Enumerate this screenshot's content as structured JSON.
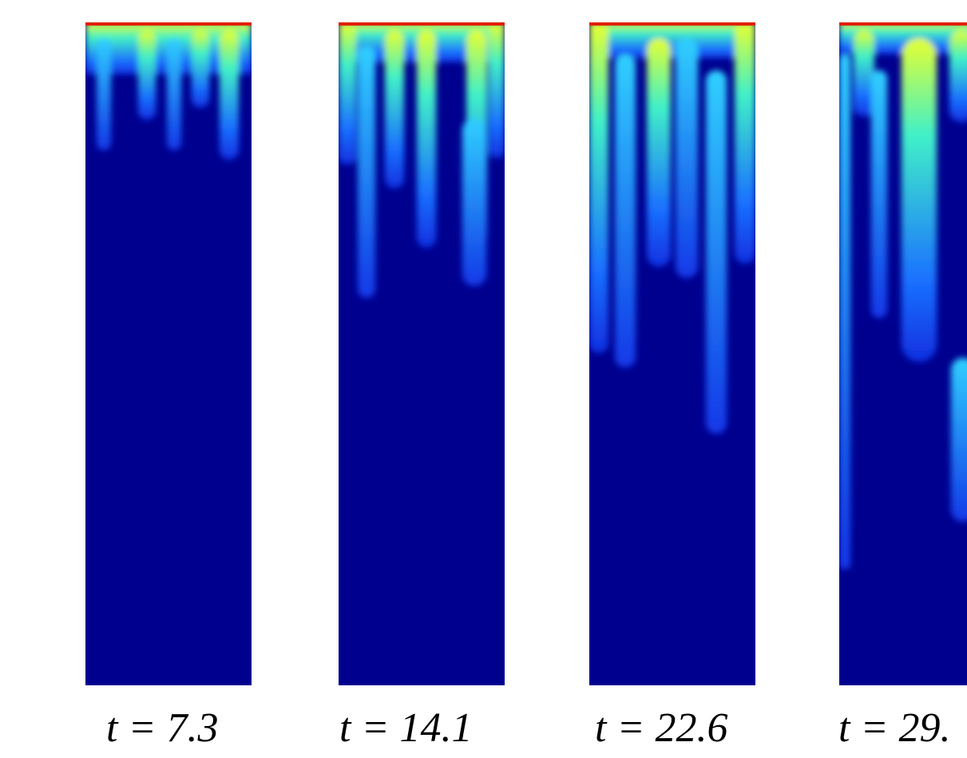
{
  "panels": [
    {
      "label": "t = 7.3"
    },
    {
      "label": "t = 14.1"
    },
    {
      "label": "t = 22.6"
    },
    {
      "label": "t = 29."
    }
  ]
}
